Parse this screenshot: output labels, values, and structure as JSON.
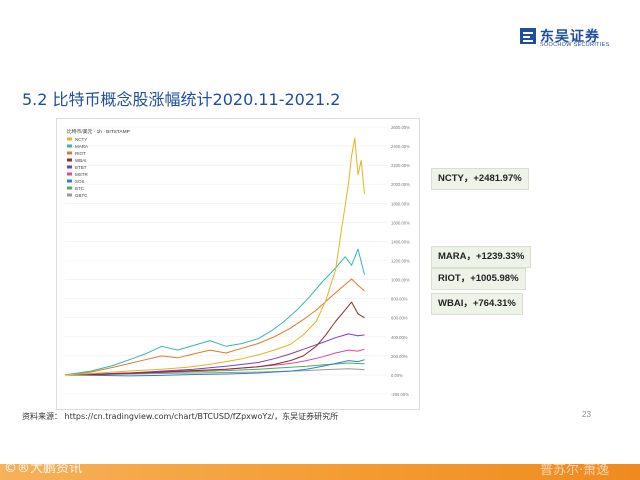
{
  "header": {
    "logo_cn": "东吴证券",
    "logo_en": "SOOCHOW SECURITIES",
    "brand_color": "#1f4e9a"
  },
  "slide": {
    "title": "5.2 比特币概念股涨幅统计2020.11-2021.2",
    "page_number": "23"
  },
  "callouts": [
    {
      "label": "NCTY，+2481.97%"
    },
    {
      "label": "MARA，+1239.33%"
    },
    {
      "label": "RIOT，+1005.98%"
    },
    {
      "label": "WBAI，+764.31%"
    }
  ],
  "source": "资料来源： https://cn.tradingview.com/chart/BTCUSD/fZpxwoYz/，东吴证券研究所",
  "watermarks": {
    "left": "©®大鹏资讯",
    "right": "普苏尔·萧逸"
  },
  "chart_data": {
    "type": "line",
    "y_unit": "%",
    "ylim": [
      -200,
      2600
    ],
    "yticks": [
      -200,
      0,
      200,
      400,
      600,
      800,
      1000,
      1200,
      1400,
      1600,
      1800,
      2000,
      2200,
      2400,
      2600
    ],
    "ytick_labels": [
      "-200.00%",
      "0.00%",
      "200.00%",
      "400.00%",
      "600.00%",
      "800.00%",
      "1000.00%",
      "1200.00%",
      "1400.00%",
      "1600.00%",
      "1800.00%",
      "2000.00%",
      "2200.00%",
      "2400.00%",
      "2600.00%"
    ],
    "xlim": [
      0,
      100
    ],
    "legend_position": "top-left",
    "legend_title": "比特币/美元 · 1h · BITSTAMP",
    "series": [
      {
        "name": "NCTY",
        "color": "#e8b21f",
        "points": [
          [
            0,
            0
          ],
          [
            8,
            15
          ],
          [
            15,
            30
          ],
          [
            22,
            45
          ],
          [
            30,
            60
          ],
          [
            38,
            80
          ],
          [
            45,
            110
          ],
          [
            50,
            140
          ],
          [
            55,
            170
          ],
          [
            60,
            210
          ],
          [
            65,
            260
          ],
          [
            70,
            320
          ],
          [
            74,
            420
          ],
          [
            78,
            560
          ],
          [
            81,
            780
          ],
          [
            84,
            1100
          ],
          [
            86,
            1550
          ],
          [
            88,
            2000
          ],
          [
            89,
            2300
          ],
          [
            90,
            2482
          ],
          [
            91,
            2100
          ],
          [
            92,
            2250
          ],
          [
            93,
            1900
          ]
        ]
      },
      {
        "name": "MARA",
        "color": "#36b8b0",
        "points": [
          [
            0,
            0
          ],
          [
            8,
            40
          ],
          [
            15,
            100
          ],
          [
            20,
            160
          ],
          [
            25,
            220
          ],
          [
            30,
            300
          ],
          [
            35,
            260
          ],
          [
            40,
            310
          ],
          [
            45,
            360
          ],
          [
            50,
            300
          ],
          [
            55,
            330
          ],
          [
            60,
            380
          ],
          [
            64,
            460
          ],
          [
            68,
            560
          ],
          [
            72,
            680
          ],
          [
            76,
            820
          ],
          [
            80,
            980
          ],
          [
            84,
            1120
          ],
          [
            87,
            1239
          ],
          [
            89,
            1150
          ],
          [
            91,
            1320
          ],
          [
            93,
            1050
          ]
        ]
      },
      {
        "name": "RIOT",
        "color": "#e07a28",
        "points": [
          [
            0,
            0
          ],
          [
            8,
            30
          ],
          [
            15,
            80
          ],
          [
            20,
            120
          ],
          [
            25,
            160
          ],
          [
            30,
            200
          ],
          [
            35,
            180
          ],
          [
            40,
            220
          ],
          [
            45,
            260
          ],
          [
            50,
            230
          ],
          [
            55,
            280
          ],
          [
            60,
            330
          ],
          [
            65,
            400
          ],
          [
            70,
            490
          ],
          [
            74,
            580
          ],
          [
            78,
            680
          ],
          [
            82,
            800
          ],
          [
            86,
            920
          ],
          [
            89,
            1006
          ],
          [
            91,
            940
          ],
          [
            93,
            880
          ]
        ]
      },
      {
        "name": "WBAI",
        "color": "#8e2d2d",
        "points": [
          [
            0,
            0
          ],
          [
            10,
            5
          ],
          [
            20,
            15
          ],
          [
            30,
            30
          ],
          [
            40,
            45
          ],
          [
            50,
            60
          ],
          [
            60,
            85
          ],
          [
            65,
            110
          ],
          [
            70,
            150
          ],
          [
            74,
            200
          ],
          [
            78,
            300
          ],
          [
            81,
            420
          ],
          [
            84,
            560
          ],
          [
            87,
            680
          ],
          [
            89,
            764
          ],
          [
            91,
            640
          ],
          [
            93,
            600
          ]
        ]
      },
      {
        "name": "BTBT",
        "color": "#7a3fb8",
        "points": [
          [
            0,
            0
          ],
          [
            10,
            10
          ],
          [
            20,
            20
          ],
          [
            30,
            40
          ],
          [
            40,
            60
          ],
          [
            50,
            90
          ],
          [
            60,
            130
          ],
          [
            65,
            170
          ],
          [
            70,
            220
          ],
          [
            75,
            280
          ],
          [
            80,
            340
          ],
          [
            84,
            390
          ],
          [
            88,
            430
          ],
          [
            91,
            410
          ],
          [
            93,
            420
          ]
        ]
      },
      {
        "name": "MSTR",
        "color": "#d64aa0",
        "points": [
          [
            0,
            0
          ],
          [
            10,
            10
          ],
          [
            20,
            20
          ],
          [
            30,
            35
          ],
          [
            40,
            45
          ],
          [
            50,
            60
          ],
          [
            60,
            85
          ],
          [
            70,
            120
          ],
          [
            75,
            150
          ],
          [
            80,
            190
          ],
          [
            84,
            230
          ],
          [
            88,
            260
          ],
          [
            91,
            250
          ],
          [
            93,
            270
          ]
        ]
      },
      {
        "name": "SOS",
        "color": "#2f7fcf",
        "points": [
          [
            0,
            0
          ],
          [
            10,
            -5
          ],
          [
            20,
            -10
          ],
          [
            30,
            -5
          ],
          [
            40,
            5
          ],
          [
            50,
            10
          ],
          [
            60,
            20
          ],
          [
            70,
            40
          ],
          [
            75,
            60
          ],
          [
            80,
            90
          ],
          [
            84,
            120
          ],
          [
            88,
            150
          ],
          [
            91,
            140
          ],
          [
            93,
            160
          ]
        ]
      },
      {
        "name": "BTC",
        "color": "#4caf50",
        "points": [
          [
            0,
            0
          ],
          [
            10,
            8
          ],
          [
            20,
            15
          ],
          [
            30,
            25
          ],
          [
            40,
            35
          ],
          [
            50,
            45
          ],
          [
            60,
            60
          ],
          [
            70,
            80
          ],
          [
            75,
            90
          ],
          [
            80,
            105
          ],
          [
            84,
            115
          ],
          [
            88,
            125
          ],
          [
            91,
            120
          ],
          [
            93,
            118
          ]
        ]
      },
      {
        "name": "GBTC",
        "color": "#999999",
        "points": [
          [
            0,
            0
          ],
          [
            10,
            5
          ],
          [
            20,
            10
          ],
          [
            30,
            15
          ],
          [
            40,
            20
          ],
          [
            50,
            25
          ],
          [
            60,
            30
          ],
          [
            70,
            40
          ],
          [
            75,
            45
          ],
          [
            80,
            55
          ],
          [
            84,
            60
          ],
          [
            88,
            65
          ],
          [
            91,
            60
          ],
          [
            93,
            55
          ]
        ]
      }
    ]
  }
}
